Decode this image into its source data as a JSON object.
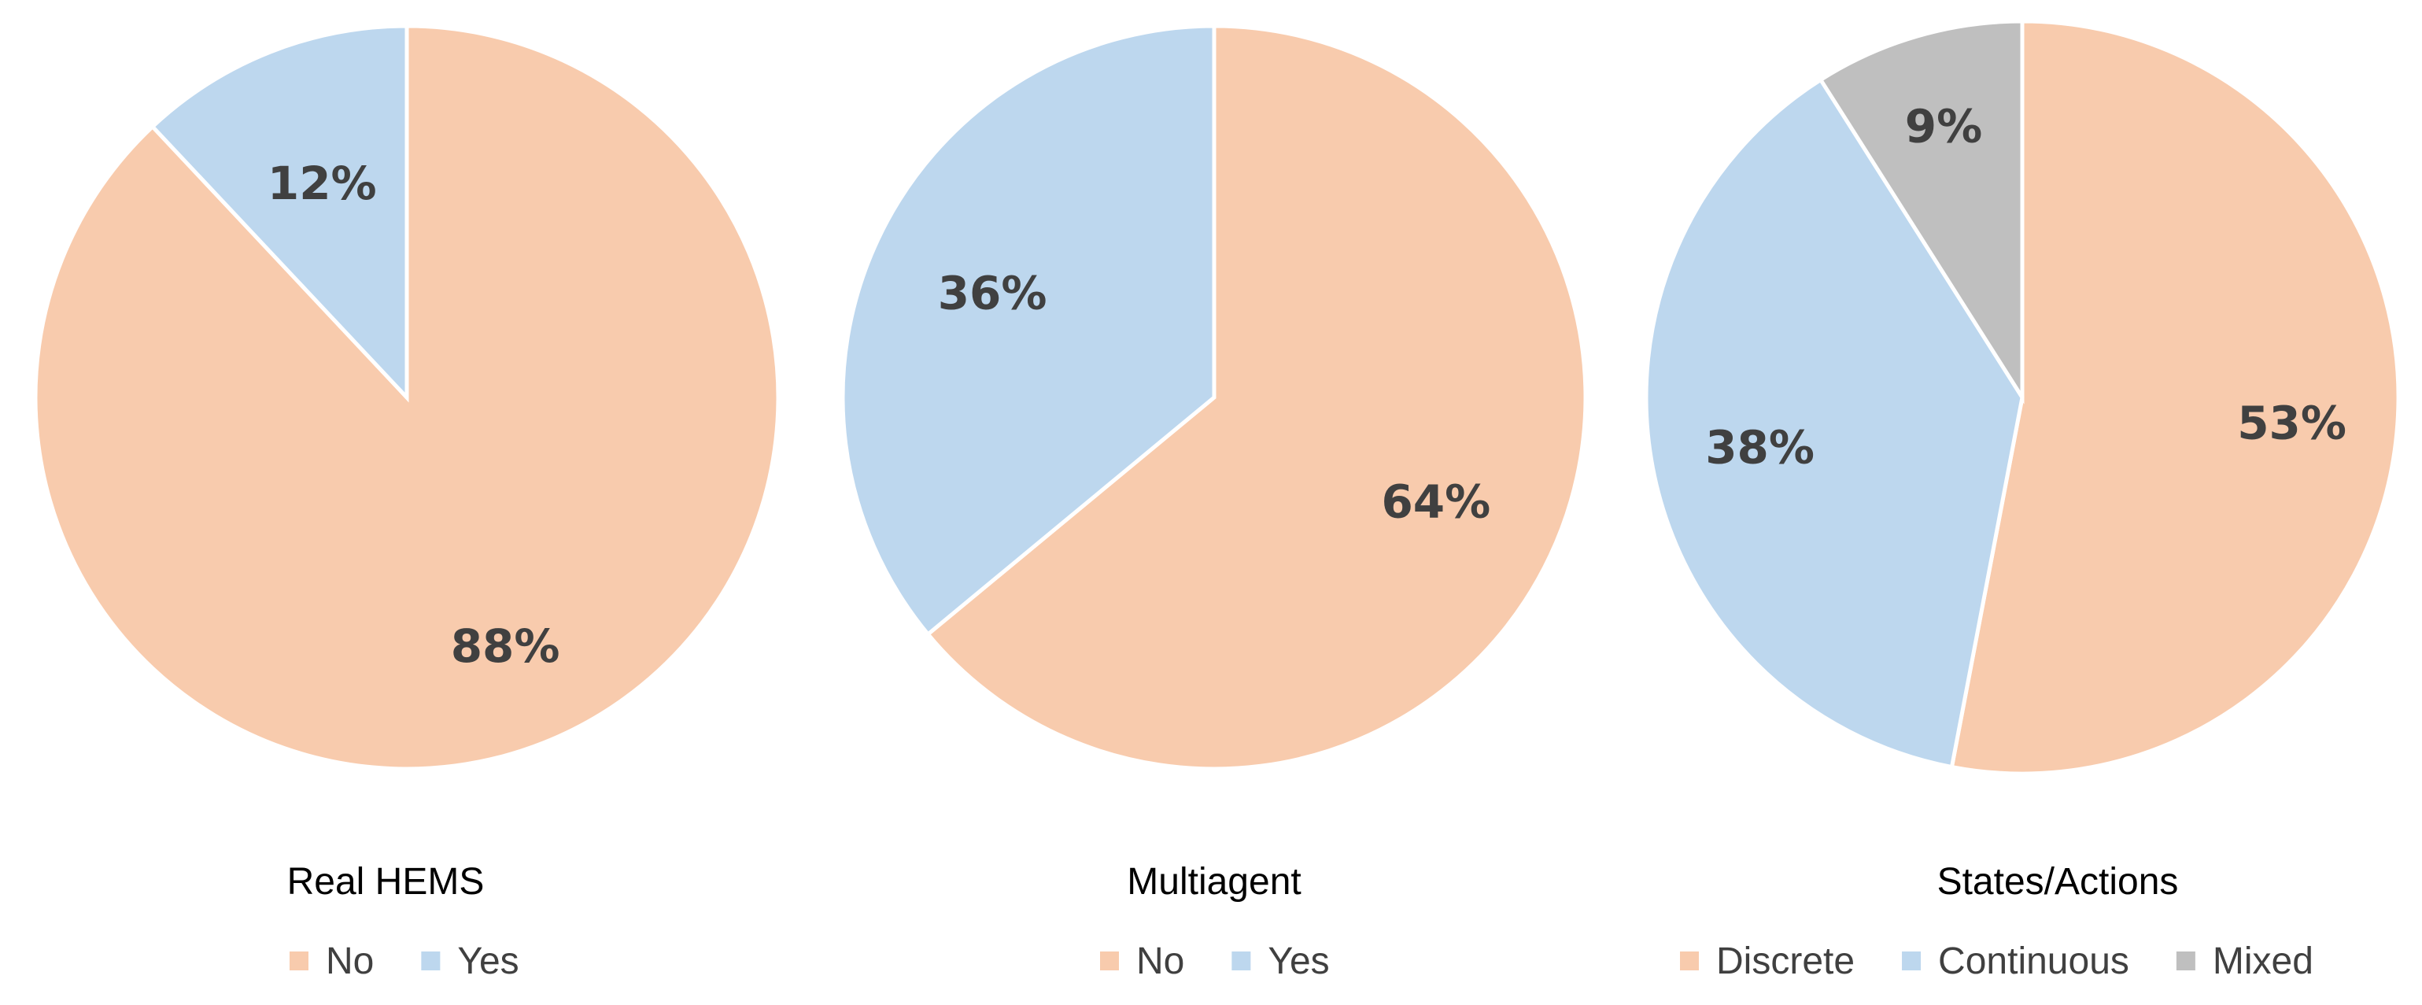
{
  "chart_data": [
    {
      "type": "pie",
      "title": "Real HEMS",
      "legend_position": "bottom",
      "slices": [
        {
          "label": "No",
          "value": 88,
          "display": "88%",
          "color": "#F8CBAD"
        },
        {
          "label": "Yes",
          "value": 12,
          "display": "12%",
          "color": "#BDD7EE"
        }
      ]
    },
    {
      "type": "pie",
      "title": "Multiagent",
      "legend_position": "bottom",
      "slices": [
        {
          "label": "No",
          "value": 64,
          "display": "64%",
          "color": "#F8CBAD"
        },
        {
          "label": "Yes",
          "value": 36,
          "display": "36%",
          "color": "#BDD7EE"
        }
      ]
    },
    {
      "type": "pie",
      "title": "States/Actions",
      "legend_position": "bottom",
      "slices": [
        {
          "label": "Discrete",
          "value": 53,
          "display": "53%",
          "color": "#F8CBAD"
        },
        {
          "label": "Continuous",
          "value": 38,
          "display": "38%",
          "color": "#BDD7EE"
        },
        {
          "label": "Mixed",
          "value": 9,
          "display": "9%",
          "color": "#BFBFBF"
        }
      ]
    }
  ]
}
